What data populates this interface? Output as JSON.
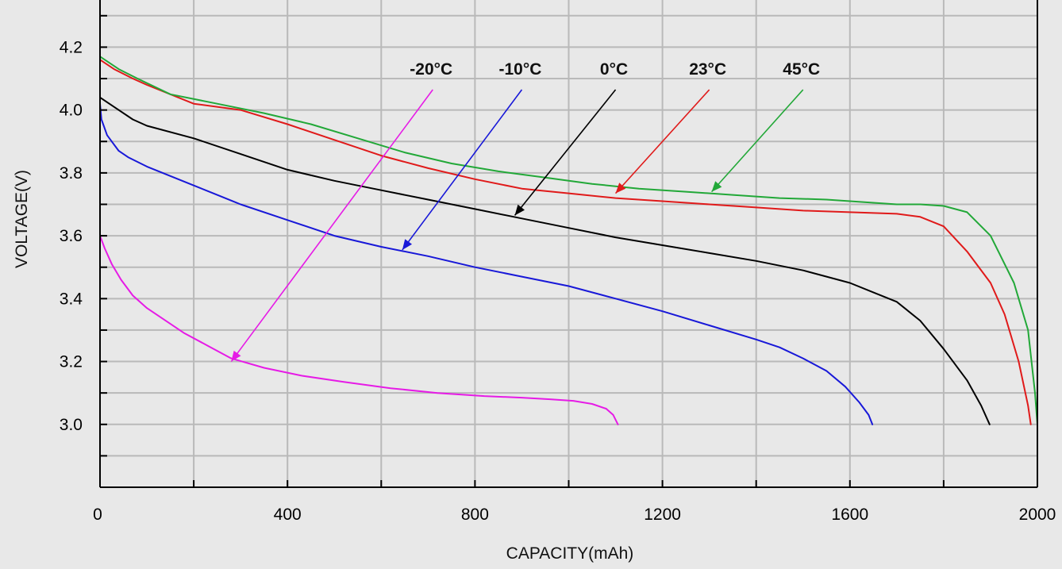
{
  "chart_data": {
    "type": "line",
    "title": "",
    "xlabel": "CAPACITY(mAh)",
    "ylabel": "VOLTAGE(V)",
    "xlim": [
      0,
      2000
    ],
    "ylim": [
      2.8,
      4.35
    ],
    "x_ticks": [
      0,
      400,
      800,
      1200,
      1600,
      2000
    ],
    "x_tick_labels": [
      "0",
      "400",
      "800",
      "1200",
      "1600",
      "2000"
    ],
    "y_ticks": [
      3.0,
      3.2,
      3.4,
      3.6,
      3.8,
      4.0,
      4.2
    ],
    "y_tick_labels": [
      "3.0",
      "3.2",
      "3.4",
      "3.6",
      "3.8",
      "4.0",
      "4.2"
    ],
    "grid": true,
    "background_color": "#e8e8e8",
    "grid_color": "#b9b9b9",
    "series": [
      {
        "name": "-20°C",
        "color": "#e61be6",
        "label_point": [
          710,
          4.1
        ],
        "arrow_tip": [
          280,
          3.2
        ],
        "points": [
          [
            0,
            3.6
          ],
          [
            10,
            3.56
          ],
          [
            25,
            3.51
          ],
          [
            45,
            3.46
          ],
          [
            70,
            3.41
          ],
          [
            100,
            3.37
          ],
          [
            140,
            3.33
          ],
          [
            180,
            3.29
          ],
          [
            230,
            3.25
          ],
          [
            280,
            3.21
          ],
          [
            350,
            3.18
          ],
          [
            430,
            3.155
          ],
          [
            520,
            3.135
          ],
          [
            620,
            3.115
          ],
          [
            720,
            3.1
          ],
          [
            820,
            3.09
          ],
          [
            900,
            3.085
          ],
          [
            960,
            3.08
          ],
          [
            1010,
            3.075
          ],
          [
            1050,
            3.065
          ],
          [
            1080,
            3.05
          ],
          [
            1095,
            3.03
          ],
          [
            1105,
            3.0
          ]
        ]
      },
      {
        "name": "-10°C",
        "color": "#1818d8",
        "label_point": [
          900,
          4.1
        ],
        "arrow_tip": [
          645,
          3.555
        ],
        "points": [
          [
            0,
            4.02
          ],
          [
            3,
            3.97
          ],
          [
            8,
            3.95
          ],
          [
            15,
            3.92
          ],
          [
            25,
            3.9
          ],
          [
            40,
            3.87
          ],
          [
            60,
            3.85
          ],
          [
            100,
            3.82
          ],
          [
            150,
            3.79
          ],
          [
            200,
            3.76
          ],
          [
            250,
            3.73
          ],
          [
            300,
            3.7
          ],
          [
            400,
            3.65
          ],
          [
            500,
            3.6
          ],
          [
            600,
            3.565
          ],
          [
            700,
            3.535
          ],
          [
            800,
            3.5
          ],
          [
            900,
            3.47
          ],
          [
            1000,
            3.44
          ],
          [
            1100,
            3.4
          ],
          [
            1200,
            3.36
          ],
          [
            1300,
            3.315
          ],
          [
            1400,
            3.27
          ],
          [
            1450,
            3.245
          ],
          [
            1500,
            3.21
          ],
          [
            1550,
            3.17
          ],
          [
            1590,
            3.12
          ],
          [
            1620,
            3.07
          ],
          [
            1640,
            3.03
          ],
          [
            1648,
            3.0
          ]
        ]
      },
      {
        "name": "0°C",
        "color": "#000000",
        "label_point": [
          1100,
          4.1
        ],
        "arrow_tip": [
          885,
          3.665
        ],
        "points": [
          [
            0,
            4.04
          ],
          [
            30,
            4.01
          ],
          [
            70,
            3.97
          ],
          [
            100,
            3.95
          ],
          [
            200,
            3.91
          ],
          [
            300,
            3.86
          ],
          [
            400,
            3.81
          ],
          [
            500,
            3.775
          ],
          [
            600,
            3.745
          ],
          [
            700,
            3.715
          ],
          [
            800,
            3.685
          ],
          [
            900,
            3.655
          ],
          [
            1000,
            3.625
          ],
          [
            1100,
            3.595
          ],
          [
            1200,
            3.57
          ],
          [
            1300,
            3.545
          ],
          [
            1400,
            3.52
          ],
          [
            1500,
            3.49
          ],
          [
            1600,
            3.45
          ],
          [
            1650,
            3.42
          ],
          [
            1700,
            3.39
          ],
          [
            1750,
            3.33
          ],
          [
            1800,
            3.24
          ],
          [
            1850,
            3.14
          ],
          [
            1880,
            3.06
          ],
          [
            1898,
            3.0
          ]
        ]
      },
      {
        "name": "23°C",
        "color": "#e01a1a",
        "label_point": [
          1300,
          4.1
        ],
        "arrow_tip": [
          1100,
          3.735
        ],
        "points": [
          [
            0,
            4.16
          ],
          [
            30,
            4.13
          ],
          [
            70,
            4.1
          ],
          [
            100,
            4.08
          ],
          [
            150,
            4.05
          ],
          [
            200,
            4.02
          ],
          [
            300,
            4.0
          ],
          [
            400,
            3.955
          ],
          [
            500,
            3.905
          ],
          [
            600,
            3.855
          ],
          [
            700,
            3.815
          ],
          [
            800,
            3.78
          ],
          [
            900,
            3.75
          ],
          [
            1000,
            3.735
          ],
          [
            1100,
            3.72
          ],
          [
            1200,
            3.71
          ],
          [
            1300,
            3.7
          ],
          [
            1400,
            3.69
          ],
          [
            1500,
            3.68
          ],
          [
            1600,
            3.675
          ],
          [
            1700,
            3.67
          ],
          [
            1750,
            3.66
          ],
          [
            1800,
            3.63
          ],
          [
            1850,
            3.55
          ],
          [
            1900,
            3.45
          ],
          [
            1930,
            3.35
          ],
          [
            1960,
            3.2
          ],
          [
            1980,
            3.06
          ],
          [
            1986,
            3.0
          ]
        ]
      },
      {
        "name": "45°C",
        "color": "#22a838",
        "label_point": [
          1500,
          4.1
        ],
        "arrow_tip": [
          1305,
          3.74
        ],
        "points": [
          [
            0,
            4.17
          ],
          [
            40,
            4.13
          ],
          [
            80,
            4.1
          ],
          [
            150,
            4.05
          ],
          [
            250,
            4.02
          ],
          [
            350,
            3.99
          ],
          [
            450,
            3.955
          ],
          [
            550,
            3.91
          ],
          [
            650,
            3.865
          ],
          [
            750,
            3.83
          ],
          [
            850,
            3.805
          ],
          [
            950,
            3.785
          ],
          [
            1050,
            3.765
          ],
          [
            1150,
            3.75
          ],
          [
            1250,
            3.74
          ],
          [
            1350,
            3.73
          ],
          [
            1450,
            3.72
          ],
          [
            1550,
            3.715
          ],
          [
            1600,
            3.71
          ],
          [
            1650,
            3.705
          ],
          [
            1700,
            3.7
          ],
          [
            1750,
            3.7
          ],
          [
            1800,
            3.695
          ],
          [
            1850,
            3.675
          ],
          [
            1900,
            3.6
          ],
          [
            1950,
            3.45
          ],
          [
            1980,
            3.3
          ],
          [
            1995,
            3.1
          ],
          [
            2000,
            3.0
          ]
        ]
      }
    ]
  }
}
